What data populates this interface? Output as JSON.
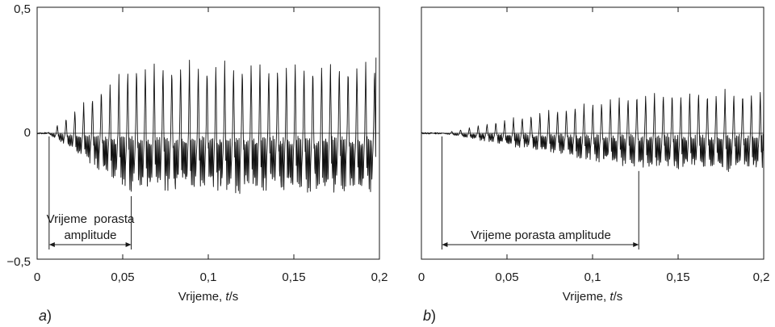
{
  "chart_data": [
    {
      "type": "line",
      "panel_label": "a",
      "xlabel": "Vrijeme, t/s",
      "xlim": [
        0,
        0.2
      ],
      "ylim": [
        -0.5,
        0.5
      ],
      "x_ticks": [
        "0",
        "0,05",
        "0,1",
        "0,15",
        "0,2"
      ],
      "x_tick_values": [
        0,
        0.05,
        0.1,
        0.15,
        0.2
      ],
      "y_ticks": [
        "0,5",
        "0",
        "−0,5"
      ],
      "y_tick_values": [
        0.5,
        0,
        -0.5
      ],
      "grid": false,
      "zero_line": true,
      "signal": {
        "onset": 0.006,
        "rise_end": 0.055,
        "period": 0.00515,
        "max_positive": 0.29,
        "max_negative": -0.24,
        "end": 0.198,
        "final_peak": 0.3
      },
      "annotation": {
        "lines": [
          "Vrijeme  porasta",
          "amplitude"
        ],
        "start": 0.007,
        "end": 0.055
      }
    },
    {
      "type": "line",
      "panel_label": "b",
      "xlabel": "Vrijeme, t/s",
      "xlim": [
        0,
        0.2
      ],
      "ylim": [
        -0.5,
        0.5
      ],
      "x_ticks": [
        "0",
        "0,05",
        "0,1",
        "0,15",
        "0,2"
      ],
      "x_tick_values": [
        0,
        0.05,
        0.1,
        0.15,
        0.2
      ],
      "y_ticks": [],
      "grid": false,
      "zero_line": true,
      "signal": {
        "onset": 0.012,
        "rise_end": 0.127,
        "period": 0.00515,
        "max_positive": 0.17,
        "max_negative": -0.15,
        "end": 0.2,
        "final_peak": 0.16
      },
      "annotation": {
        "lines": [
          "Vrijeme porasta amplitude"
        ],
        "start": 0.012,
        "end": 0.127
      }
    }
  ]
}
